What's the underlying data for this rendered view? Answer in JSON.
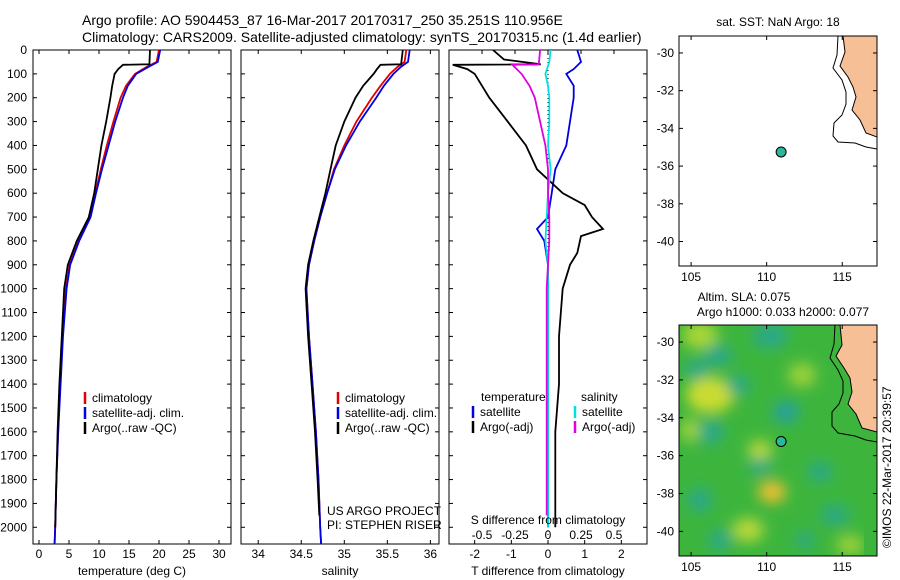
{
  "header": {
    "line1": "Argo profile: AO 5904453_87 16-Mar-2017 20170317_250 35.251S 110.956E",
    "line2": "Climatology: CARS2009. Satellite-adjusted climatology: synTS_20170315.nc (1.4d earlier)"
  },
  "colors": {
    "climatology": "#e00000",
    "satellite": "#0000e0",
    "argo": "#000000",
    "sal_satellite": "#00e0e0",
    "sal_argo": "#e000e0",
    "land": "#f7bf96",
    "marker": "#2ab79a"
  },
  "chart_data": [
    {
      "id": "temperature",
      "type": "line",
      "xlabel": "temperature (deg C)",
      "ylabel": "",
      "xlim": [
        -1,
        32
      ],
      "ylim": [
        2070,
        0
      ],
      "xticks": [
        0,
        5,
        10,
        15,
        20,
        25,
        30
      ],
      "yticks": [
        0,
        100,
        200,
        300,
        400,
        500,
        600,
        700,
        800,
        900,
        1000,
        1100,
        1200,
        1300,
        1400,
        1500,
        1600,
        1700,
        1800,
        1900,
        2000
      ],
      "legend": [
        "climatology",
        "satellite-adj. clim.",
        "Argo(..raw -QC)"
      ],
      "series": [
        {
          "name": "climatology",
          "depth": [
            0,
            50,
            70,
            100,
            150,
            200,
            300,
            400,
            500,
            600,
            700,
            800,
            900,
            1000,
            1200,
            1400,
            1600,
            1800,
            2000,
            2070
          ],
          "values": [
            20.0,
            19.6,
            18.0,
            16.0,
            14.5,
            13.6,
            12.4,
            11.3,
            10.3,
            9.4,
            8.5,
            6.6,
            5.1,
            4.5,
            3.9,
            3.5,
            3.2,
            2.9,
            2.7,
            2.6
          ]
        },
        {
          "name": "satellite-adj. clim.",
          "depth": [
            0,
            50,
            70,
            100,
            150,
            200,
            300,
            400,
            500,
            600,
            700,
            800,
            900,
            1000,
            1200,
            1400,
            1600,
            1800,
            2000,
            2070
          ],
          "values": [
            20.2,
            19.8,
            18.3,
            16.2,
            14.8,
            14.0,
            12.7,
            11.6,
            10.5,
            9.5,
            8.6,
            6.7,
            5.2,
            4.6,
            4.0,
            3.6,
            3.2,
            2.9,
            2.7,
            2.6
          ]
        },
        {
          "name": "Argo(..raw -QC)",
          "depth": [
            0,
            60,
            62,
            80,
            100,
            150,
            200,
            300,
            400,
            500,
            600,
            700,
            800,
            900,
            1000,
            1200,
            1400,
            1600,
            1800,
            2000
          ],
          "values": [
            18.5,
            18.4,
            14.0,
            13.2,
            12.6,
            12.2,
            11.9,
            11.2,
            10.4,
            9.8,
            9.2,
            8.3,
            6.3,
            4.8,
            4.2,
            3.8,
            3.4,
            3.1,
            2.9,
            2.7
          ]
        }
      ]
    },
    {
      "id": "salinity",
      "type": "line",
      "xlabel": "salinity",
      "ylabel": "",
      "xlim": [
        33.8,
        36.1
      ],
      "ylim": [
        2070,
        0
      ],
      "xticks": [
        34,
        34.5,
        35,
        35.5,
        36
      ],
      "legend": [
        "climatology",
        "satellite-adj. clim.",
        "Argo(..raw -QC)"
      ],
      "annotation": [
        "US ARGO PROJECT",
        "PI: STEPHEN RISER"
      ],
      "series": [
        {
          "name": "climatology",
          "depth": [
            0,
            50,
            70,
            100,
            150,
            200,
            300,
            400,
            500,
            600,
            700,
            800,
            900,
            1000,
            1200,
            1400,
            1600,
            1800,
            2000,
            2070
          ],
          "values": [
            35.72,
            35.7,
            35.62,
            35.53,
            35.42,
            35.32,
            35.14,
            35.0,
            34.88,
            34.8,
            34.72,
            34.65,
            34.59,
            34.56,
            34.59,
            34.63,
            34.67,
            34.7,
            34.72,
            34.73
          ]
        },
        {
          "name": "satellite-adj. clim.",
          "depth": [
            0,
            50,
            70,
            100,
            150,
            200,
            300,
            400,
            500,
            600,
            700,
            800,
            900,
            1000,
            1200,
            1400,
            1600,
            1800,
            2000,
            2070
          ],
          "values": [
            35.76,
            35.74,
            35.66,
            35.57,
            35.46,
            35.37,
            35.18,
            35.02,
            34.89,
            34.8,
            34.72,
            34.65,
            34.59,
            34.56,
            34.59,
            34.63,
            34.67,
            34.7,
            34.72,
            34.73
          ]
        },
        {
          "name": "Argo(..raw -QC)",
          "depth": [
            0,
            60,
            62,
            80,
            100,
            150,
            200,
            300,
            400,
            500,
            600,
            700,
            800,
            900,
            1000,
            1200,
            1400,
            1600,
            1800,
            1950
          ],
          "values": [
            35.68,
            35.66,
            35.42,
            35.38,
            35.34,
            35.22,
            35.13,
            35.0,
            34.9,
            34.84,
            34.78,
            34.71,
            34.64,
            34.58,
            34.55,
            34.58,
            34.62,
            34.66,
            34.69,
            34.71
          ]
        }
      ]
    },
    {
      "id": "differences",
      "type": "line",
      "xlabel_top": "S difference from climatology",
      "xlabel": "T difference from climatology",
      "xlim": [
        -2.7,
        2.7
      ],
      "ylim": [
        2070,
        0
      ],
      "xticks_T": [
        -2,
        -1,
        0,
        1,
        2
      ],
      "xticks_S": [
        -0.5,
        -0.25,
        0,
        0.25,
        0.5
      ],
      "legend": {
        "temperature": "temperature",
        "salinity": "salinity",
        "t_sat": "satellite",
        "t_argo": "Argo(-adj)",
        "s_sat": "satellite",
        "s_argo": "Argo(-adj)"
      },
      "series": [
        {
          "name": "T satellite",
          "depth": [
            0,
            50,
            80,
            100,
            150,
            200,
            300,
            400,
            500,
            600,
            700,
            750,
            800,
            900,
            1000,
            1200,
            1400,
            1600,
            1800,
            2000
          ],
          "values": [
            0.8,
            0.9,
            0.7,
            0.5,
            0.7,
            0.7,
            0.6,
            0.5,
            0.2,
            0.1,
            0.0,
            -0.3,
            -0.1,
            0.0,
            0.0,
            0.0,
            0.0,
            0.0,
            0.0,
            0.0
          ]
        },
        {
          "name": "T Argo(-adj)",
          "depth": [
            0,
            40,
            60,
            62,
            80,
            100,
            150,
            200,
            300,
            400,
            500,
            600,
            650,
            700,
            750,
            780,
            850,
            900,
            1000,
            1200,
            1400,
            1600,
            1800,
            2000
          ],
          "values": [
            -1.5,
            -1.2,
            -0.2,
            -2.6,
            -2.2,
            -2.0,
            -1.8,
            -1.6,
            -1.1,
            -0.6,
            -0.3,
            0.4,
            1.0,
            1.2,
            1.5,
            0.9,
            0.8,
            0.6,
            0.4,
            0.3,
            0.3,
            0.2,
            0.2,
            0.2
          ]
        },
        {
          "name": "S satellite",
          "depth": [
            0,
            50,
            100,
            150,
            200,
            300,
            400,
            500,
            600,
            700,
            800,
            900,
            1000,
            1200,
            1400,
            1600,
            1800,
            2000
          ],
          "values": [
            0.02,
            0.01,
            -0.02,
            0.0,
            0.01,
            0.01,
            0.0,
            0.02,
            0.0,
            -0.01,
            -0.02,
            0.0,
            0.0,
            0.0,
            0.0,
            0.0,
            0.0,
            0.0
          ]
        },
        {
          "name": "S Argo(-adj)",
          "depth": [
            0,
            60,
            62,
            100,
            150,
            200,
            300,
            400,
            500,
            600,
            700,
            800,
            900,
            1000,
            1200,
            1400,
            1600,
            1800,
            1950
          ],
          "values": [
            -0.06,
            -0.07,
            -0.27,
            -0.2,
            -0.14,
            -0.1,
            -0.06,
            -0.02,
            0.0,
            0.0,
            0.01,
            0.01,
            0.0,
            -0.01,
            -0.01,
            -0.01,
            -0.01,
            -0.01,
            -0.01
          ]
        }
      ]
    },
    {
      "id": "sst_map",
      "type": "map",
      "title": "sat. SST: NaN Argo: 18",
      "xlim": [
        104.2,
        117.3
      ],
      "ylim": [
        -41.3,
        -29.1
      ],
      "xticks": [
        105,
        110,
        115
      ],
      "yticks": [
        -30,
        -32,
        -34,
        -36,
        -38,
        -40
      ],
      "marker": {
        "lon": 110.956,
        "lat": -35.251
      }
    },
    {
      "id": "sla_map",
      "type": "heatmap",
      "title_line1": "Altim. SLA: 0.075",
      "title_line2": "Argo h1000: 0.033 h2000: 0.077",
      "xlim": [
        104.2,
        117.3
      ],
      "ylim": [
        -41.3,
        -29.1
      ],
      "xticks": [
        105,
        110,
        115
      ],
      "yticks": [
        -30,
        -32,
        -34,
        -36,
        -38,
        -40
      ],
      "marker": {
        "lon": 110.956,
        "lat": -35.251
      }
    }
  ],
  "footer": {
    "stamp": "©IMOS 22-Mar-2017 20:39:57"
  }
}
